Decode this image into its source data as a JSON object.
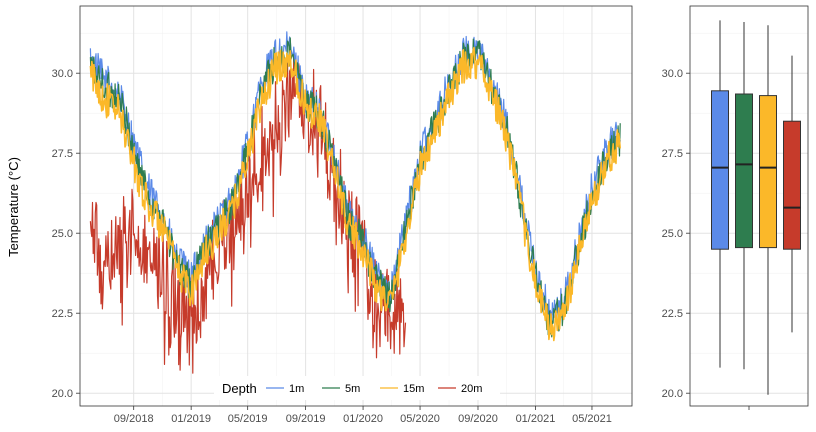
{
  "chart_data": [
    {
      "type": "line",
      "ylabel": "Temperature (°C)",
      "xlabel": "",
      "ylim": [
        19.6,
        32.1
      ],
      "x_range": [
        "2018-05-10",
        "2021-07-25"
      ],
      "grid": true,
      "legend": {
        "title": "Depth",
        "placement": "bottom-inside"
      },
      "x_tick_labels": [
        "09/2018",
        "01/2019",
        "05/2019",
        "09/2019",
        "01/2020",
        "05/2020",
        "09/2020",
        "01/2021",
        "05/2021"
      ],
      "x_ticks": [
        "2018-09-01",
        "2019-01-01",
        "2019-05-01",
        "2019-09-01",
        "2020-01-01",
        "2020-05-01",
        "2020-09-01",
        "2021-01-01",
        "2021-05-01"
      ],
      "y_ticks": [
        20.0,
        22.5,
        25.0,
        27.5,
        30.0
      ],
      "y_tick_labels": [
        "20.0",
        "22.5",
        "25.0",
        "27.5",
        "30.0"
      ],
      "series": [
        {
          "name": "1m",
          "color": "#5b8ae8",
          "x": [
            "2018-06-01",
            "2018-07-01",
            "2018-08-01",
            "2018-09-01",
            "2018-10-01",
            "2018-11-01",
            "2018-12-01",
            "2019-01-01",
            "2019-02-01",
            "2019-03-01",
            "2019-04-01",
            "2019-05-01",
            "2019-06-01",
            "2019-07-01",
            "2019-08-01",
            "2019-09-01",
            "2019-10-01",
            "2019-11-01",
            "2019-12-01",
            "2020-01-01",
            "2020-02-01",
            "2020-03-01",
            "2020-04-01",
            "2020-05-01",
            "2020-06-01",
            "2020-07-01",
            "2020-08-01",
            "2020-09-01",
            "2020-10-01",
            "2020-11-01",
            "2020-12-01",
            "2021-01-01",
            "2021-02-01",
            "2021-03-01",
            "2021-04-01",
            "2021-05-01",
            "2021-06-01",
            "2021-07-01"
          ],
          "y": [
            30.4,
            29.8,
            29.4,
            27.8,
            26.4,
            25.6,
            24.2,
            23.6,
            24.8,
            25.4,
            26.2,
            27.8,
            29.8,
            30.6,
            30.8,
            29.2,
            28.8,
            27.4,
            25.6,
            24.9,
            23.6,
            23.2,
            25.4,
            27.4,
            28.6,
            29.6,
            30.6,
            30.8,
            29.6,
            28.4,
            26.2,
            23.8,
            22.4,
            22.8,
            24.6,
            26.4,
            27.6,
            28.2
          ]
        },
        {
          "name": "5m",
          "color": "#2e7d4f",
          "x": [
            "2018-06-01",
            "2018-07-01",
            "2018-08-01",
            "2018-09-01",
            "2018-10-01",
            "2018-11-01",
            "2018-12-01",
            "2019-01-01",
            "2019-02-01",
            "2019-03-01",
            "2019-04-01",
            "2019-05-01",
            "2019-06-01",
            "2019-07-01",
            "2019-08-01",
            "2019-09-01",
            "2019-10-01",
            "2019-11-01",
            "2019-12-01",
            "2020-01-01",
            "2020-02-01",
            "2020-03-01",
            "2020-04-01",
            "2020-05-01",
            "2020-06-01",
            "2020-07-01",
            "2020-08-01",
            "2020-09-01",
            "2020-10-01",
            "2020-11-01",
            "2020-12-01",
            "2021-01-01",
            "2021-02-01",
            "2021-03-01",
            "2021-04-01",
            "2021-05-01",
            "2021-06-01",
            "2021-07-01"
          ],
          "y": [
            30.2,
            29.6,
            29.2,
            27.6,
            26.2,
            25.4,
            24.0,
            23.4,
            24.6,
            25.2,
            26.0,
            27.6,
            29.6,
            30.4,
            30.6,
            29.1,
            28.7,
            27.2,
            25.4,
            24.7,
            23.4,
            23.0,
            25.2,
            27.2,
            28.4,
            29.4,
            30.4,
            30.6,
            29.5,
            28.2,
            26.0,
            23.6,
            22.2,
            22.6,
            24.4,
            26.2,
            27.4,
            28.0
          ]
        },
        {
          "name": "15m",
          "color": "#fbb829",
          "x": [
            "2018-06-01",
            "2018-07-01",
            "2018-08-01",
            "2018-09-01",
            "2018-10-01",
            "2018-11-01",
            "2018-12-01",
            "2019-01-01",
            "2019-02-01",
            "2019-03-01",
            "2019-04-01",
            "2019-05-01",
            "2019-06-01",
            "2019-07-01",
            "2019-08-01",
            "2019-09-01",
            "2019-10-01",
            "2019-11-01",
            "2019-12-01",
            "2020-01-01",
            "2020-02-01",
            "2020-03-01",
            "2020-04-01",
            "2020-05-01",
            "2020-06-01",
            "2020-07-01",
            "2020-08-01",
            "2020-09-01",
            "2020-10-01",
            "2020-11-01",
            "2020-12-01",
            "2021-01-01",
            "2021-02-01",
            "2021-03-01",
            "2021-04-01",
            "2021-05-01",
            "2021-06-01",
            "2021-07-01"
          ],
          "y": [
            30.0,
            29.2,
            28.8,
            27.2,
            25.9,
            25.2,
            23.9,
            23.2,
            24.4,
            25.0,
            25.8,
            27.4,
            29.2,
            30.2,
            30.4,
            29.0,
            28.6,
            27.0,
            25.2,
            24.5,
            23.2,
            22.8,
            25.0,
            27.0,
            28.2,
            29.2,
            30.2,
            30.4,
            29.4,
            28.0,
            25.8,
            23.4,
            22.0,
            22.4,
            24.2,
            26.0,
            27.2,
            27.9
          ]
        },
        {
          "name": "20m",
          "color": "#c63b2b",
          "x": [
            "2018-06-01",
            "2018-07-01",
            "2018-08-01",
            "2018-09-01",
            "2018-10-01",
            "2018-11-01",
            "2018-12-01",
            "2019-01-01",
            "2019-02-01",
            "2019-03-01",
            "2019-04-01",
            "2019-05-01",
            "2019-06-01",
            "2019-07-01",
            "2019-08-01",
            "2019-09-01",
            "2019-10-01",
            "2019-11-01",
            "2019-12-01",
            "2020-01-01",
            "2020-02-01",
            "2020-03-01",
            "2020-04-01"
          ],
          "y": [
            25.0,
            24.2,
            24.6,
            25.2,
            24.6,
            24.0,
            23.2,
            22.6,
            23.6,
            24.4,
            25.2,
            26.6,
            27.6,
            28.6,
            29.4,
            29.0,
            28.6,
            27.0,
            25.2,
            24.4,
            23.0,
            22.4,
            23.4
          ]
        }
      ]
    },
    {
      "type": "box",
      "ylim": [
        19.6,
        32.1
      ],
      "y_ticks": [
        20.0,
        22.5,
        25.0,
        27.5,
        30.0
      ],
      "y_tick_labels": [
        "20.0",
        "22.5",
        "25.0",
        "27.5",
        "30.0"
      ],
      "boxes": [
        {
          "name": "1m",
          "color": "#5b8ae8",
          "min": 20.8,
          "q1": 24.5,
          "median": 27.05,
          "q3": 29.45,
          "max": 31.65
        },
        {
          "name": "5m",
          "color": "#2e7d4f",
          "min": 20.75,
          "q1": 24.55,
          "median": 27.15,
          "q3": 29.35,
          "max": 31.6
        },
        {
          "name": "15m",
          "color": "#fbb829",
          "min": 19.95,
          "q1": 24.55,
          "median": 27.05,
          "q3": 29.3,
          "max": 31.5
        },
        {
          "name": "20m",
          "color": "#c63b2b",
          "min": 21.9,
          "q1": 24.5,
          "median": 25.8,
          "q3": 28.5,
          "max": 30.55
        }
      ]
    }
  ]
}
